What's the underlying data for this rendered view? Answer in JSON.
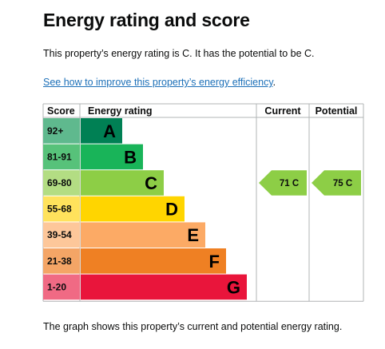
{
  "heading": "Energy rating and score",
  "summary": "This property’s energy rating is C. It has the potential to be C.",
  "improve_link": "See how to improve this property’s energy efficiency",
  "improve_suffix": ".",
  "caption": "The graph shows this property’s current and potential energy rating.",
  "chart_data": {
    "type": "bar",
    "headers": {
      "score": "Score",
      "rating": "Energy rating",
      "current": "Current",
      "potential": "Potential"
    },
    "bands": [
      {
        "score": "92+",
        "letter": "A",
        "bar_color": "#008054",
        "score_color": "#5fb98e"
      },
      {
        "score": "81-91",
        "letter": "B",
        "bar_color": "#19b459",
        "score_color": "#57c27a"
      },
      {
        "score": "69-80",
        "letter": "C",
        "bar_color": "#8dce46",
        "score_color": "#b3dd83"
      },
      {
        "score": "55-68",
        "letter": "D",
        "bar_color": "#ffd500",
        "score_color": "#ffe25c"
      },
      {
        "score": "39-54",
        "letter": "E",
        "bar_color": "#fcaa65",
        "score_color": "#fdc79a"
      },
      {
        "score": "21-38",
        "letter": "F",
        "bar_color": "#ef8023",
        "score_color": "#f4a566"
      },
      {
        "score": "1-20",
        "letter": "G",
        "bar_color": "#e9153b",
        "score_color": "#f06a84"
      }
    ],
    "current": {
      "value": 71,
      "letter": "C",
      "label": "71 C",
      "band": "C",
      "color": "#8dce46"
    },
    "potential": {
      "value": 75,
      "letter": "C",
      "label": "75 C",
      "band": "C",
      "color": "#8dce46"
    }
  }
}
